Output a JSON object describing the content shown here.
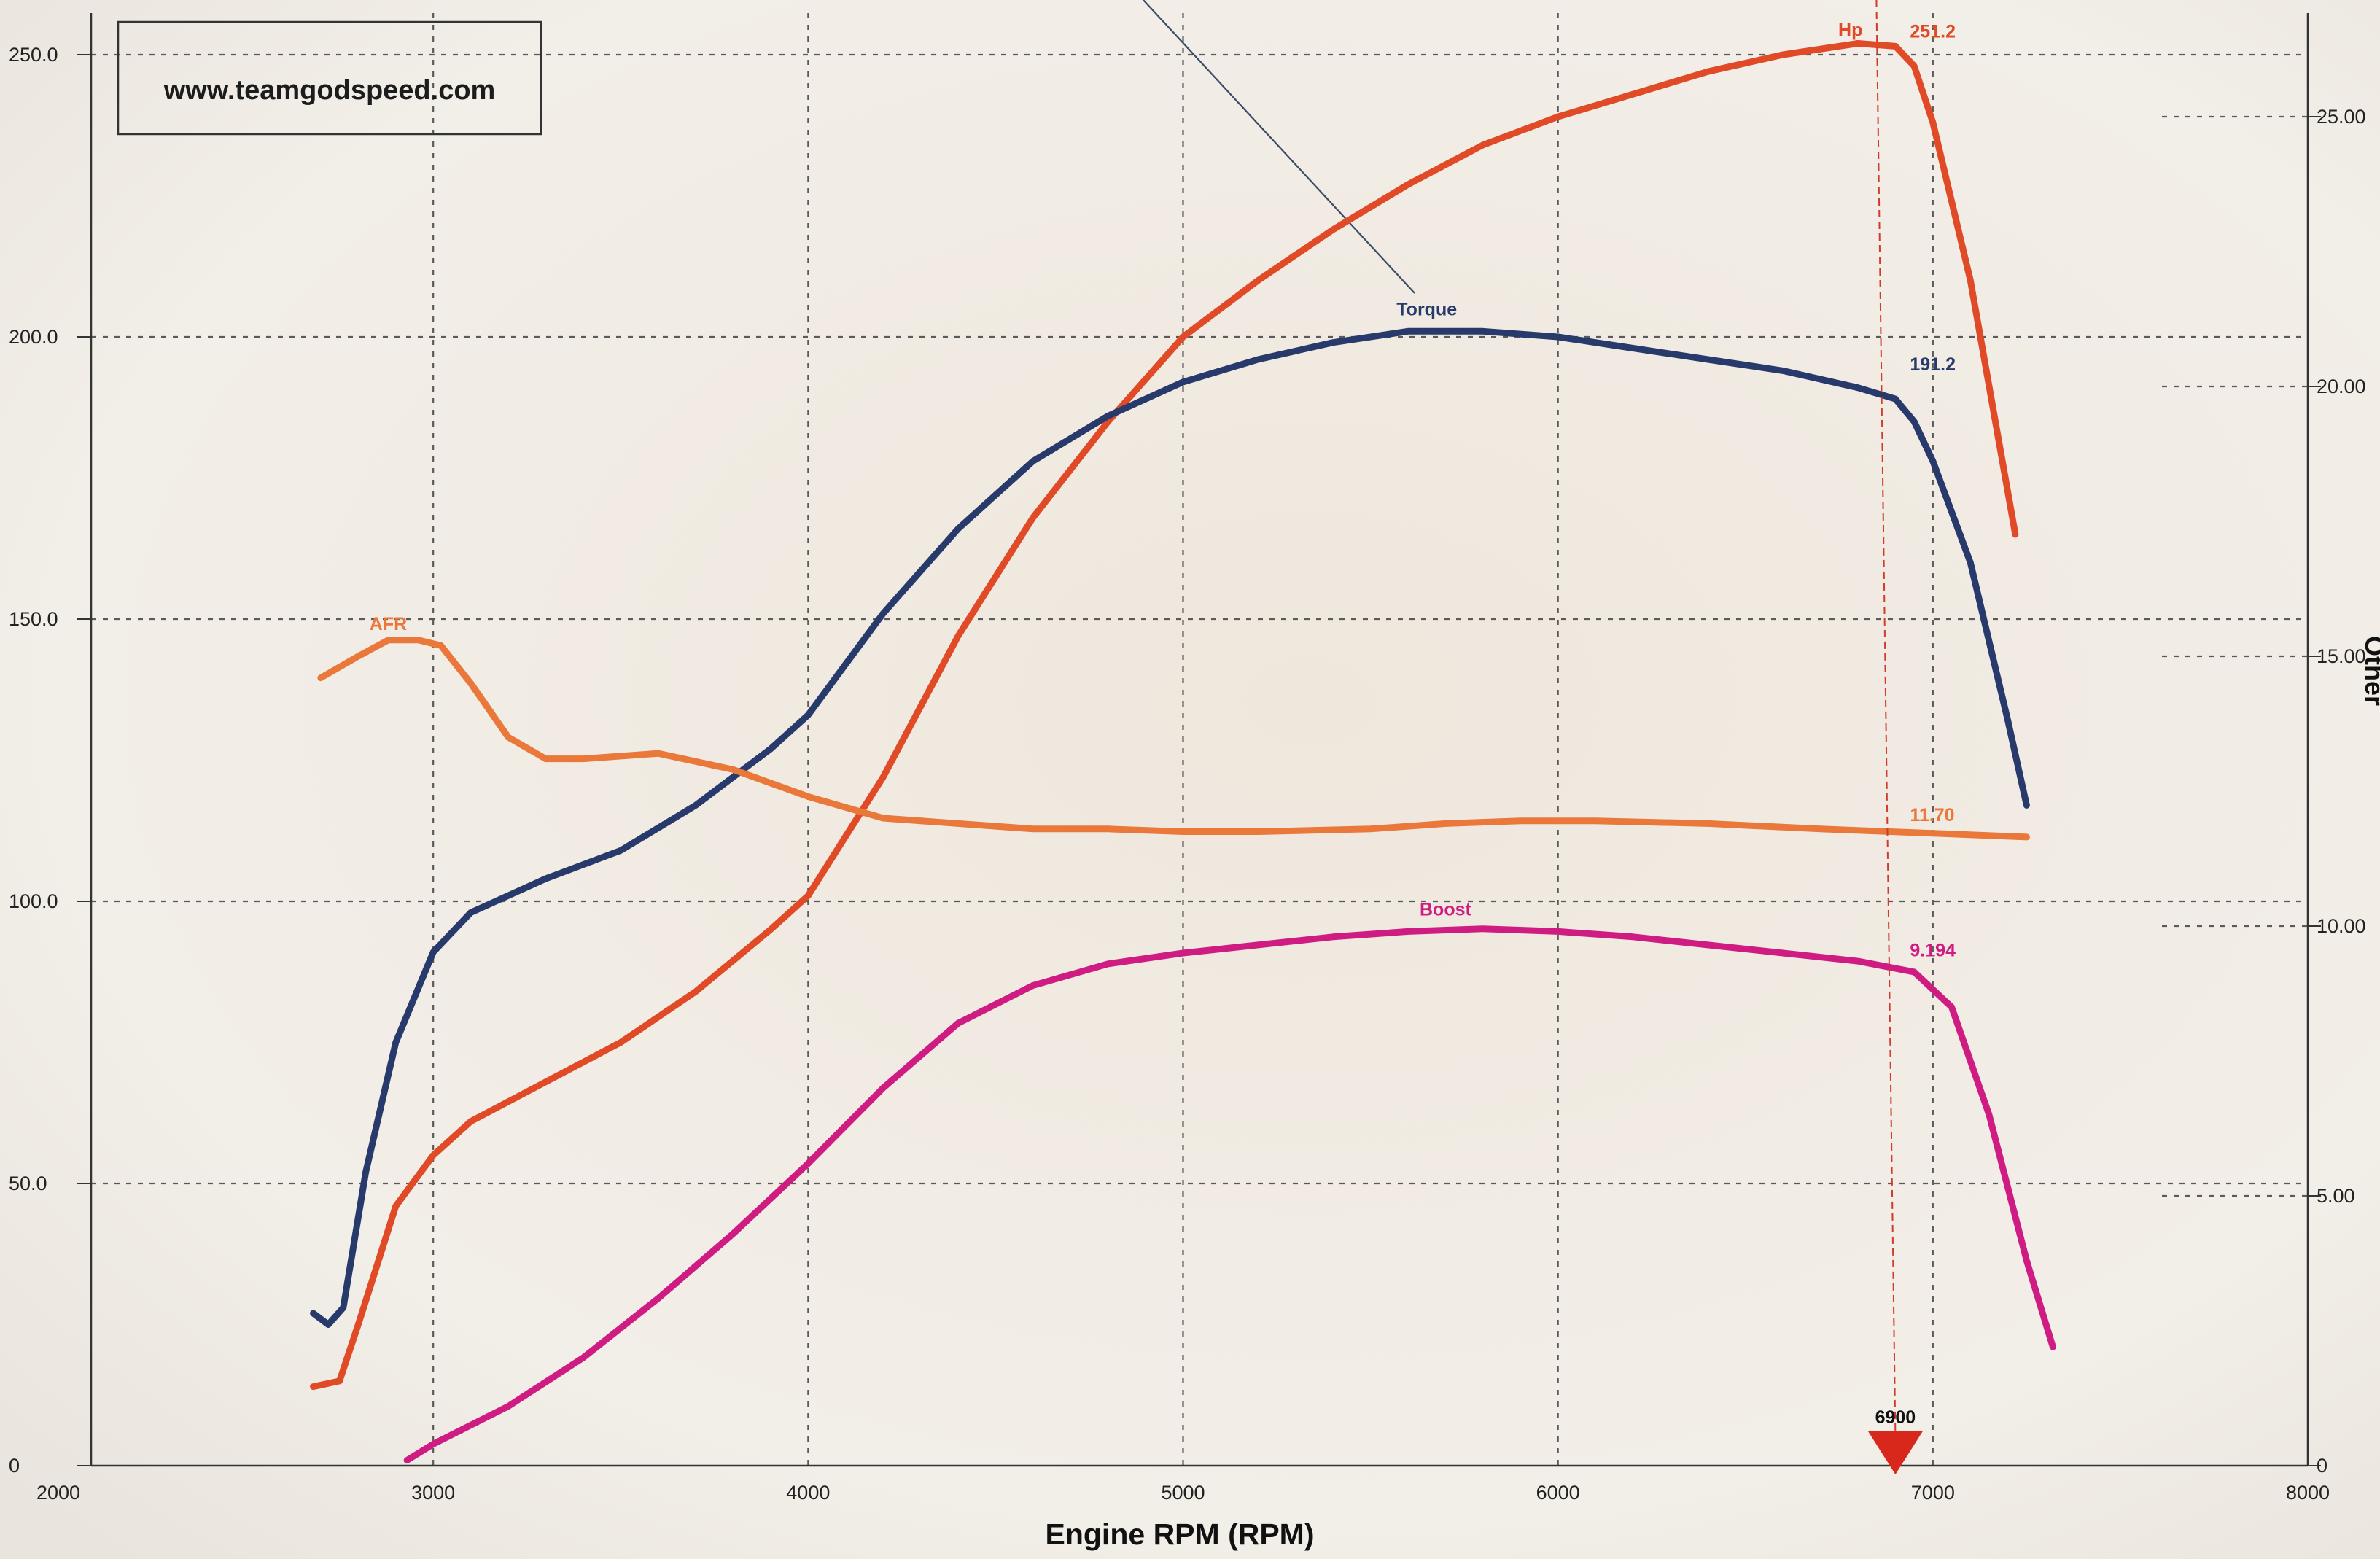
{
  "watermark": "www.teamgodspeed.com",
  "chart_data": {
    "type": "line",
    "xlabel": "Engine RPM (RPM)",
    "ylabel_right": "Other",
    "xlim": [
      2000,
      8000
    ],
    "ylim_left": [
      0,
      260
    ],
    "ylim_right": [
      0,
      26
    ],
    "x_ticks": [
      "2000",
      "3000",
      "4000",
      "5000",
      "6000",
      "7000",
      "8000"
    ],
    "y_left_ticks": [
      "0",
      "50.0",
      "100.0",
      "150.0",
      "200.0",
      "250.0"
    ],
    "y_right_ticks": [
      "0",
      "5.00",
      "10.00",
      "15.00",
      "20.00",
      "25.00"
    ],
    "grid": true,
    "cursor": {
      "rpm": 6900,
      "label": "6900"
    },
    "series": [
      {
        "name": "Hp",
        "axis": "left",
        "color": "#e04a26",
        "end_value_label": "251.2",
        "points": [
          [
            2680,
            14
          ],
          [
            2750,
            15
          ],
          [
            2800,
            25
          ],
          [
            2900,
            46
          ],
          [
            3000,
            55
          ],
          [
            3100,
            61
          ],
          [
            3300,
            68
          ],
          [
            3500,
            75
          ],
          [
            3700,
            84
          ],
          [
            3900,
            95
          ],
          [
            4000,
            101
          ],
          [
            4200,
            122
          ],
          [
            4400,
            147
          ],
          [
            4600,
            168
          ],
          [
            4800,
            185
          ],
          [
            5000,
            200
          ],
          [
            5200,
            210
          ],
          [
            5400,
            219
          ],
          [
            5600,
            227
          ],
          [
            5800,
            234
          ],
          [
            6000,
            239
          ],
          [
            6200,
            243
          ],
          [
            6400,
            247
          ],
          [
            6600,
            250
          ],
          [
            6800,
            252
          ],
          [
            6900,
            251.5
          ],
          [
            6950,
            248
          ],
          [
            7000,
            238
          ],
          [
            7100,
            210
          ],
          [
            7220,
            165
          ]
        ]
      },
      {
        "name": "Torque",
        "axis": "left",
        "color": "#283a6c",
        "end_value_label": "191.2",
        "points": [
          [
            2680,
            27
          ],
          [
            2720,
            25
          ],
          [
            2760,
            28
          ],
          [
            2820,
            52
          ],
          [
            2900,
            75
          ],
          [
            3000,
            91
          ],
          [
            3100,
            98
          ],
          [
            3300,
            104
          ],
          [
            3500,
            109
          ],
          [
            3700,
            117
          ],
          [
            3900,
            127
          ],
          [
            4000,
            133
          ],
          [
            4200,
            151
          ],
          [
            4400,
            166
          ],
          [
            4600,
            178
          ],
          [
            4800,
            186
          ],
          [
            5000,
            192
          ],
          [
            5200,
            196
          ],
          [
            5400,
            199
          ],
          [
            5600,
            201
          ],
          [
            5800,
            201
          ],
          [
            6000,
            200
          ],
          [
            6200,
            198
          ],
          [
            6400,
            196
          ],
          [
            6600,
            194
          ],
          [
            6800,
            191
          ],
          [
            6900,
            189
          ],
          [
            6950,
            185
          ],
          [
            7000,
            178
          ],
          [
            7100,
            160
          ],
          [
            7200,
            132
          ],
          [
            7250,
            117
          ]
        ]
      },
      {
        "name": "AFR",
        "axis": "right",
        "color": "#e9783a",
        "end_value_label": "11.70",
        "points": [
          [
            2700,
            14.6
          ],
          [
            2800,
            15.0
          ],
          [
            2880,
            15.3
          ],
          [
            2960,
            15.3
          ],
          [
            3020,
            15.2
          ],
          [
            3100,
            14.5
          ],
          [
            3200,
            13.5
          ],
          [
            3300,
            13.1
          ],
          [
            3400,
            13.1
          ],
          [
            3600,
            13.2
          ],
          [
            3800,
            12.9
          ],
          [
            4000,
            12.4
          ],
          [
            4200,
            12.0
          ],
          [
            4400,
            11.9
          ],
          [
            4600,
            11.8
          ],
          [
            4800,
            11.8
          ],
          [
            5000,
            11.75
          ],
          [
            5200,
            11.75
          ],
          [
            5500,
            11.8
          ],
          [
            5700,
            11.9
          ],
          [
            5900,
            11.95
          ],
          [
            6100,
            11.95
          ],
          [
            6400,
            11.9
          ],
          [
            6700,
            11.8
          ],
          [
            7000,
            11.72
          ],
          [
            7250,
            11.65
          ]
        ]
      },
      {
        "name": "Boost",
        "axis": "right",
        "color": "#cf1c82",
        "end_value_label": "9.194",
        "points": [
          [
            2930,
            0.1
          ],
          [
            3000,
            0.4
          ],
          [
            3200,
            1.1
          ],
          [
            3400,
            2.0
          ],
          [
            3600,
            3.1
          ],
          [
            3800,
            4.3
          ],
          [
            4000,
            5.6
          ],
          [
            4200,
            7.0
          ],
          [
            4400,
            8.2
          ],
          [
            4600,
            8.9
          ],
          [
            4800,
            9.3
          ],
          [
            5000,
            9.5
          ],
          [
            5200,
            9.65
          ],
          [
            5400,
            9.8
          ],
          [
            5600,
            9.9
          ],
          [
            5800,
            9.95
          ],
          [
            6000,
            9.9
          ],
          [
            6200,
            9.8
          ],
          [
            6400,
            9.65
          ],
          [
            6600,
            9.5
          ],
          [
            6800,
            9.35
          ],
          [
            6950,
            9.15
          ],
          [
            7050,
            8.5
          ],
          [
            7150,
            6.5
          ],
          [
            7250,
            3.8
          ],
          [
            7320,
            2.2
          ]
        ]
      }
    ]
  }
}
